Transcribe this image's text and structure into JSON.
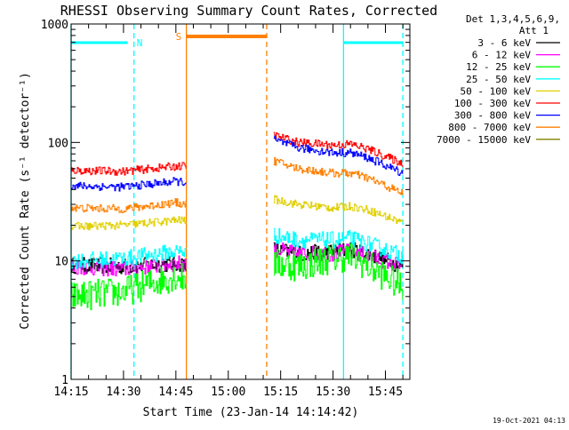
{
  "chart_data": {
    "type": "line",
    "title": "RHESSI Observing Summary Count Rates, Corrected",
    "xlabel": "Start Time (23-Jan-14 14:14:42)",
    "ylabel": "Corrected Count Rate (s⁻¹ detector⁻¹)",
    "yscale": "log",
    "ylim": [
      1,
      1000
    ],
    "xlim": [
      "14:15",
      "15:52"
    ],
    "x_ticks": [
      "14:15",
      "14:30",
      "14:45",
      "15:00",
      "15:15",
      "15:30",
      "15:45"
    ],
    "y_ticks": [
      "1",
      "10",
      "100",
      "1000"
    ],
    "grid": false,
    "legend": {
      "position": "top-right",
      "header": [
        "Det 1,3,4,5,6,9,",
        "Att 1"
      ]
    },
    "timestamp": "19-Oct-2021 04:13",
    "time_intervals": [
      {
        "label": "N",
        "type": "night",
        "start": "14:15",
        "end": "14:33",
        "color": "#00ffff"
      },
      {
        "label": "",
        "type": "night",
        "start": "15:33",
        "end": "15:50",
        "color": "#00ffff"
      },
      {
        "label": "S",
        "type": "saa",
        "start": "14:48",
        "end": "15:11",
        "color": "#ff8000"
      }
    ],
    "series": [
      {
        "name": "3 - 6 keV",
        "color": "#000000",
        "segments": [
          {
            "x": [
              "14:15",
              "14:30",
              "14:45",
              "14:48"
            ],
            "y": [
              9.2,
              9.0,
              9.5,
              9.5
            ]
          },
          {
            "x": [
              "15:13",
              "15:20",
              "15:30",
              "15:35",
              "15:40",
              "15:50"
            ],
            "y": [
              12.5,
              11.5,
              12.0,
              12.5,
              11.5,
              9.0
            ]
          }
        ]
      },
      {
        "name": "6 - 12 keV",
        "color": "#ff00ff",
        "segments": [
          {
            "x": [
              "14:15",
              "14:30",
              "14:45",
              "14:48"
            ],
            "y": [
              9.0,
              8.5,
              9.5,
              9.5
            ]
          },
          {
            "x": [
              "15:13",
              "15:20",
              "15:30",
              "15:35",
              "15:40",
              "15:50"
            ],
            "y": [
              12.5,
              11.5,
              11.5,
              12.0,
              11.0,
              9.0
            ]
          }
        ]
      },
      {
        "name": "12 - 25 keV",
        "color": "#00ff00",
        "segments": [
          {
            "x": [
              "14:15",
              "14:30",
              "14:45",
              "14:48"
            ],
            "y": [
              5.0,
              5.5,
              7.5,
              7.0
            ]
          },
          {
            "x": [
              "15:13",
              "15:20",
              "15:30",
              "15:35",
              "15:40",
              "15:50"
            ],
            "y": [
              9.5,
              9.0,
              10.5,
              11.0,
              9.0,
              6.0
            ]
          }
        ]
      },
      {
        "name": "25 - 50 keV",
        "color": "#00ffff",
        "segments": [
          {
            "x": [
              "14:15",
              "14:30",
              "14:45",
              "14:48"
            ],
            "y": [
              10.0,
              10.5,
              12.0,
              12.0
            ]
          },
          {
            "x": [
              "15:13",
              "15:20",
              "15:30",
              "15:35",
              "15:40",
              "15:50"
            ],
            "y": [
              16.5,
              15.0,
              15.0,
              15.5,
              14.0,
              11.0
            ]
          }
        ]
      },
      {
        "name": "50 - 100 keV",
        "color": "#e0d000",
        "segments": [
          {
            "x": [
              "14:15",
              "14:30",
              "14:45",
              "14:48"
            ],
            "y": [
              19.5,
              20.0,
              22.0,
              22.0
            ]
          },
          {
            "x": [
              "15:13",
              "15:20",
              "15:30",
              "15:35",
              "15:40",
              "15:50"
            ],
            "y": [
              33.0,
              30.0,
              28.0,
              29.0,
              27.0,
              21.0
            ]
          }
        ]
      },
      {
        "name": "100 - 300 keV",
        "color": "#ff0000",
        "segments": [
          {
            "x": [
              "14:15",
              "14:30",
              "14:45",
              "14:48"
            ],
            "y": [
              58.0,
              57.0,
              63.0,
              63.0
            ]
          },
          {
            "x": [
              "15:13",
              "15:20",
              "15:30",
              "15:35",
              "15:40",
              "15:50"
            ],
            "y": [
              115.0,
              100.0,
              95.0,
              97.0,
              88.0,
              66.0
            ]
          }
        ]
      },
      {
        "name": "300 - 800 keV",
        "color": "#0000ff",
        "segments": [
          {
            "x": [
              "14:15",
              "14:30",
              "14:45",
              "14:48"
            ],
            "y": [
              43.0,
              42.0,
              47.0,
              46.0
            ]
          },
          {
            "x": [
              "15:13",
              "15:20",
              "15:30",
              "15:35",
              "15:40",
              "15:50"
            ],
            "y": [
              105.0,
              90.0,
              82.0,
              82.0,
              74.0,
              55.0
            ]
          }
        ]
      },
      {
        "name": "800 - 7000 keV",
        "color": "#ff8000",
        "segments": [
          {
            "x": [
              "14:15",
              "14:30",
              "14:45",
              "14:48"
            ],
            "y": [
              28.0,
              27.5,
              31.0,
              30.0
            ]
          },
          {
            "x": [
              "15:13",
              "15:20",
              "15:30",
              "15:35",
              "15:40",
              "15:50"
            ],
            "y": [
              70.0,
              60.0,
              55.0,
              55.0,
              50.0,
              37.0
            ]
          }
        ]
      },
      {
        "name": "7000 - 15000 keV",
        "color": "#808000",
        "segments": []
      }
    ]
  }
}
